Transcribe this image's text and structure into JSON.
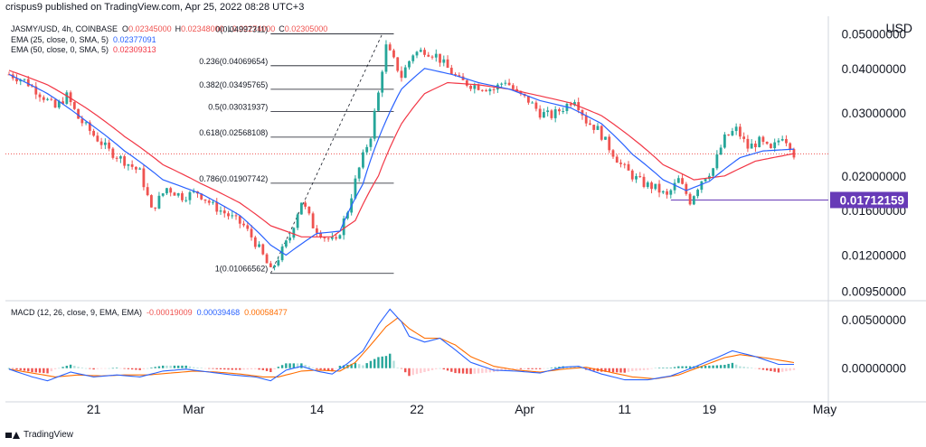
{
  "header": {
    "author": "crispus9 published on TradingView.com, Apr 25, 2022 08:28 UTC+3"
  },
  "legend": {
    "symbol": "JASMY/USD, 4h, COINBASE",
    "ohlc": [
      {
        "k": "O",
        "v": "0.02345000"
      },
      {
        "k": "H",
        "v": "0.02348000"
      },
      {
        "k": "L",
        "v": "0.02274000"
      },
      {
        "k": "C",
        "v": "0.02305000"
      }
    ],
    "ohlc_color": "#ef5350",
    "ema25": {
      "label": "EMA (25, close, 0, SMA, 5)",
      "value": "0.02377091",
      "color": "#2962ff"
    },
    "ema50": {
      "label": "EMA (50, close, 0, SMA, 5)",
      "value": "0.02309313",
      "color": "#f23645"
    },
    "macd": {
      "label": "MACD (12, 26, close, 9, EMA, EMA)",
      "v1": "-0.00019009",
      "v2": "0.00039468",
      "v3": "0.00058477",
      "c1": "#ef5350",
      "c2": "#2962ff",
      "c3": "#ff6d00"
    }
  },
  "footer": {
    "brand": "TradingView"
  },
  "colors": {
    "up": "#26a69a",
    "down": "#ef5350",
    "ema25": "#2962ff",
    "ema50": "#f23645",
    "macd": "#2962ff",
    "signal": "#ff6d00",
    "marker": "#673ab7"
  },
  "chart_data": {
    "type": "candlestick",
    "price_axis": {
      "unit_label": "USD",
      "ticks": [
        "0.05000000",
        "0.04000000",
        "0.03000000",
        "0.02000000",
        "0.01600000",
        "0.01200000",
        "0.00950000"
      ],
      "tick_values": [
        0.05,
        0.04,
        0.03,
        0.02,
        0.016,
        0.012,
        0.0095
      ],
      "scale": "log",
      "range": [
        0.0091,
        0.056
      ]
    },
    "macd_axis": {
      "ticks": [
        "0.00500000",
        "0.00000000"
      ],
      "tick_values": [
        0.005,
        0.0
      ],
      "range": [
        -0.0032,
        0.0067
      ]
    },
    "x_axis": {
      "labels": [
        "21",
        "Mar",
        "14",
        "22",
        "Apr",
        "11",
        "19",
        "May"
      ],
      "label_index": [
        22,
        48,
        80,
        106,
        134,
        160,
        182,
        212
      ]
    },
    "marker_price": {
      "value": 0.01712159,
      "label": "0.01712159",
      "start_index": 172
    },
    "last_price": {
      "value": 0.02305
    },
    "fibonacci": {
      "start_index": 68,
      "end_index": 97,
      "levels": [
        {
          "label": "0(0.04997311)",
          "value": 0.04997311
        },
        {
          "label": "0.236(0.04069654)",
          "value": 0.04069654
        },
        {
          "label": "0.382(0.03495765)",
          "value": 0.03495765
        },
        {
          "label": "0.5(0.03031937)",
          "value": 0.03031937
        },
        {
          "label": "0.618(0.02568108)",
          "value": 0.02568108
        },
        {
          "label": "0.786(0.01907742)",
          "value": 0.01907742
        },
        {
          "label": "1(0.01066562)",
          "value": 0.01066562
        }
      ],
      "trend_line": {
        "from": [
          68,
          0.01066562
        ],
        "to": [
          97,
          0.04997311
        ]
      }
    },
    "close_anchors": [
      [
        0,
        0.0385
      ],
      [
        4,
        0.037
      ],
      [
        8,
        0.034
      ],
      [
        12,
        0.031
      ],
      [
        15,
        0.0335
      ],
      [
        18,
        0.029
      ],
      [
        22,
        0.026
      ],
      [
        26,
        0.0235
      ],
      [
        30,
        0.022
      ],
      [
        34,
        0.0205
      ],
      [
        37,
        0.016
      ],
      [
        41,
        0.0185
      ],
      [
        45,
        0.0175
      ],
      [
        49,
        0.018
      ],
      [
        53,
        0.0165
      ],
      [
        57,
        0.0155
      ],
      [
        61,
        0.0145
      ],
      [
        65,
        0.0125
      ],
      [
        68,
        0.0108
      ],
      [
        70,
        0.0118
      ],
      [
        73,
        0.0135
      ],
      [
        76,
        0.017
      ],
      [
        79,
        0.0145
      ],
      [
        82,
        0.0135
      ],
      [
        85,
        0.013
      ],
      [
        88,
        0.016
      ],
      [
        91,
        0.021
      ],
      [
        94,
        0.026
      ],
      [
        96,
        0.034
      ],
      [
        98,
        0.046
      ],
      [
        100,
        0.042
      ],
      [
        102,
        0.038
      ],
      [
        105,
        0.044
      ],
      [
        108,
        0.045
      ],
      [
        111,
        0.0435
      ],
      [
        114,
        0.04
      ],
      [
        117,
        0.037
      ],
      [
        120,
        0.036
      ],
      [
        123,
        0.0355
      ],
      [
        126,
        0.035
      ],
      [
        129,
        0.037
      ],
      [
        132,
        0.034
      ],
      [
        135,
        0.0325
      ],
      [
        138,
        0.03
      ],
      [
        141,
        0.0295
      ],
      [
        144,
        0.031
      ],
      [
        147,
        0.033
      ],
      [
        150,
        0.0285
      ],
      [
        153,
        0.027
      ],
      [
        156,
        0.024
      ],
      [
        159,
        0.0215
      ],
      [
        162,
        0.02
      ],
      [
        165,
        0.019
      ],
      [
        168,
        0.0185
      ],
      [
        171,
        0.0175
      ],
      [
        174,
        0.0195
      ],
      [
        177,
        0.017
      ],
      [
        180,
        0.0195
      ],
      [
        183,
        0.021
      ],
      [
        186,
        0.0255
      ],
      [
        189,
        0.027
      ],
      [
        192,
        0.024
      ],
      [
        195,
        0.025
      ],
      [
        198,
        0.0235
      ],
      [
        201,
        0.026
      ],
      [
        203,
        0.0245
      ],
      [
        204,
        0.02305
      ]
    ],
    "ema25_anchors": [
      [
        0,
        0.0385
      ],
      [
        10,
        0.034
      ],
      [
        20,
        0.0285
      ],
      [
        30,
        0.0235
      ],
      [
        40,
        0.0195
      ],
      [
        50,
        0.0178
      ],
      [
        60,
        0.0155
      ],
      [
        68,
        0.0128
      ],
      [
        72,
        0.012
      ],
      [
        80,
        0.0138
      ],
      [
        86,
        0.014
      ],
      [
        92,
        0.019
      ],
      [
        97,
        0.027
      ],
      [
        102,
        0.035
      ],
      [
        108,
        0.04
      ],
      [
        115,
        0.0385
      ],
      [
        122,
        0.0365
      ],
      [
        130,
        0.035
      ],
      [
        138,
        0.0325
      ],
      [
        146,
        0.031
      ],
      [
        154,
        0.028
      ],
      [
        162,
        0.023
      ],
      [
        170,
        0.0195
      ],
      [
        176,
        0.0182
      ],
      [
        182,
        0.0193
      ],
      [
        190,
        0.0225
      ],
      [
        196,
        0.0235
      ],
      [
        204,
        0.02377091
      ]
    ],
    "ema50_anchors": [
      [
        0,
        0.0395
      ],
      [
        10,
        0.036
      ],
      [
        20,
        0.031
      ],
      [
        30,
        0.0258
      ],
      [
        40,
        0.0215
      ],
      [
        50,
        0.019
      ],
      [
        60,
        0.0168
      ],
      [
        68,
        0.0145
      ],
      [
        76,
        0.0135
      ],
      [
        84,
        0.0135
      ],
      [
        90,
        0.015
      ],
      [
        96,
        0.02
      ],
      [
        102,
        0.028
      ],
      [
        108,
        0.034
      ],
      [
        114,
        0.0365
      ],
      [
        122,
        0.036
      ],
      [
        130,
        0.035
      ],
      [
        138,
        0.0335
      ],
      [
        146,
        0.032
      ],
      [
        154,
        0.0295
      ],
      [
        162,
        0.0255
      ],
      [
        170,
        0.0215
      ],
      [
        178,
        0.0195
      ],
      [
        186,
        0.02
      ],
      [
        194,
        0.022
      ],
      [
        204,
        0.02309313
      ]
    ],
    "macd_anchors": [
      [
        0,
        -0.0001
      ],
      [
        6,
        -0.0009
      ],
      [
        10,
        -0.0013
      ],
      [
        16,
        -0.0004
      ],
      [
        22,
        -0.0009
      ],
      [
        28,
        -0.0007
      ],
      [
        34,
        -0.0009
      ],
      [
        40,
        -0.0003
      ],
      [
        46,
        -0.0001
      ],
      [
        52,
        -0.0004
      ],
      [
        58,
        -0.0007
      ],
      [
        64,
        -0.0009
      ],
      [
        68,
        -0.0013
      ],
      [
        72,
        -0.0002
      ],
      [
        76,
        0.0002
      ],
      [
        80,
        -0.0003
      ],
      [
        84,
        -0.0006
      ],
      [
        88,
        0.0005
      ],
      [
        92,
        0.0018
      ],
      [
        96,
        0.0045
      ],
      [
        99,
        0.0061
      ],
      [
        102,
        0.0048
      ],
      [
        104,
        0.0033
      ],
      [
        108,
        0.0027
      ],
      [
        112,
        0.0031
      ],
      [
        116,
        0.0019
      ],
      [
        120,
        0.0006
      ],
      [
        126,
        -0.0002
      ],
      [
        132,
        -0.0003
      ],
      [
        138,
        -0.0005
      ],
      [
        144,
        0.0001
      ],
      [
        148,
        0.0002
      ],
      [
        154,
        -0.0006
      ],
      [
        160,
        -0.0012
      ],
      [
        166,
        -0.0012
      ],
      [
        172,
        -0.0008
      ],
      [
        178,
        0.0001
      ],
      [
        184,
        0.0011
      ],
      [
        188,
        0.0018
      ],
      [
        194,
        0.0012
      ],
      [
        200,
        0.0004
      ],
      [
        204,
        0.00039468
      ]
    ],
    "signal_anchors": [
      [
        0,
        -0.0001
      ],
      [
        6,
        -0.0005
      ],
      [
        12,
        -0.0009
      ],
      [
        18,
        -0.0007
      ],
      [
        24,
        -0.0008
      ],
      [
        30,
        -0.0007
      ],
      [
        36,
        -0.0007
      ],
      [
        42,
        -0.0005
      ],
      [
        48,
        -0.0003
      ],
      [
        54,
        -0.0004
      ],
      [
        60,
        -0.0006
      ],
      [
        66,
        -0.0009
      ],
      [
        70,
        -0.0009
      ],
      [
        76,
        -0.0003
      ],
      [
        80,
        -0.0002
      ],
      [
        86,
        -0.0003
      ],
      [
        90,
        0.0006
      ],
      [
        94,
        0.0024
      ],
      [
        98,
        0.0043
      ],
      [
        101,
        0.0052
      ],
      [
        104,
        0.0041
      ],
      [
        108,
        0.0031
      ],
      [
        112,
        0.0031
      ],
      [
        116,
        0.0024
      ],
      [
        120,
        0.0012
      ],
      [
        126,
        0.0002
      ],
      [
        132,
        -0.0002
      ],
      [
        138,
        -0.0004
      ],
      [
        144,
        -0.0001
      ],
      [
        150,
        0.0001
      ],
      [
        156,
        -0.0004
      ],
      [
        162,
        -0.0009
      ],
      [
        168,
        -0.0011
      ],
      [
        174,
        -0.0007
      ],
      [
        180,
        0.0002
      ],
      [
        186,
        0.0011
      ],
      [
        190,
        0.0014
      ],
      [
        196,
        0.0011
      ],
      [
        204,
        0.00058477
      ]
    ]
  }
}
